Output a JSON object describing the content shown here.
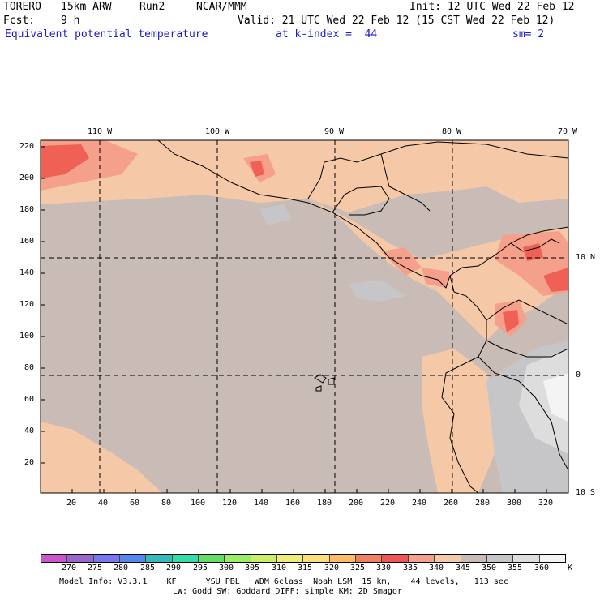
{
  "header": {
    "model": "TORERO",
    "resolution": "15km ARW",
    "run": "Run2",
    "org": "NCAR/MMM",
    "init": "Init: 12 UTC Wed 22 Feb 12",
    "fcst_label": "Fcst:",
    "fcst_value": "9 h",
    "valid": "Valid: 21 UTC Wed 22 Feb 12 (15 CST Wed 22 Feb 12)",
    "field": "Equivalent potential temperature",
    "level": "at k-index =  44",
    "smoothing": "sm= 2"
  },
  "map": {
    "top_longitudes": [
      "110 W",
      "100 W",
      "90 W",
      "80 W",
      "70 W"
    ],
    "right_latitudes": [
      "10 N",
      "0",
      "10 S"
    ],
    "y_ticks": [
      "220",
      "200",
      "180",
      "160",
      "140",
      "120",
      "100",
      "80",
      "60",
      "40",
      "20"
    ],
    "x_ticks": [
      "20",
      "40",
      "60",
      "80",
      "100",
      "120",
      "140",
      "160",
      "180",
      "200",
      "220",
      "240",
      "260",
      "280",
      "300",
      "320"
    ],
    "colors": {
      "c340": "#f5c8a8",
      "c345": "#c9bcb6",
      "c350": "#c6c6c8",
      "c355": "#dddddd",
      "c335": "#f5a08a",
      "c330": "#ef6055",
      "c325": "#f08060"
    }
  },
  "colorbar": {
    "labels": [
      "270",
      "275",
      "280",
      "285",
      "290",
      "295",
      "300",
      "305",
      "310",
      "315",
      "320",
      "325",
      "330",
      "335",
      "340",
      "345",
      "350",
      "355",
      "360"
    ],
    "unit": "K",
    "colors": [
      "#cc55cc",
      "#9966cc",
      "#7777ee",
      "#5588ee",
      "#33bbbb",
      "#33ddaa",
      "#66dd66",
      "#99ee66",
      "#ccee66",
      "#eeee77",
      "#ffdd77",
      "#ffbb66",
      "#f08060",
      "#ef5555",
      "#f5a08a",
      "#f5c8a8",
      "#c9bcb6",
      "#c6c6c8",
      "#dddddd",
      "#f4f4f4"
    ]
  },
  "footer": {
    "line1": "Model Info: V3.3.1    KF      YSU PBL   WDM 6class  Noah LSM  15 km,    44 levels,   113 sec",
    "line2": "LW: Godd SW: Goddard DIFF: simple KM: 2D Smagor"
  }
}
